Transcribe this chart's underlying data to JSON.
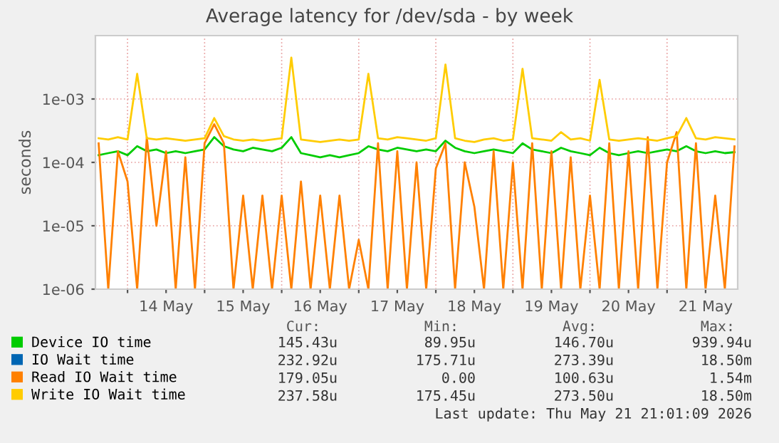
{
  "chart_data": {
    "type": "line",
    "title": "Average latency for /dev/sda - by week",
    "ylabel": "seconds",
    "log": "y",
    "grid": true,
    "legend": "bottom",
    "marker": "none",
    "line_style": "solid",
    "xlim": [
      "2026-05-13T14:00",
      "2026-05-21T22:00"
    ],
    "xticks": [
      {
        "value": "2026-05-14T00:00",
        "label": null
      },
      {
        "value": "2026-05-14T12:00",
        "label": "14 May"
      },
      {
        "value": "2026-05-15T00:00",
        "label": null
      },
      {
        "value": "2026-05-15T12:00",
        "label": "15 May"
      },
      {
        "value": "2026-05-16T00:00",
        "label": null
      },
      {
        "value": "2026-05-16T12:00",
        "label": "16 May"
      },
      {
        "value": "2026-05-17T00:00",
        "label": null
      },
      {
        "value": "2026-05-17T12:00",
        "label": "17 May"
      },
      {
        "value": "2026-05-18T00:00",
        "label": null
      },
      {
        "value": "2026-05-18T12:00",
        "label": "18 May"
      },
      {
        "value": "2026-05-19T00:00",
        "label": null
      },
      {
        "value": "2026-05-19T12:00",
        "label": "19 May"
      },
      {
        "value": "2026-05-20T00:00",
        "label": null
      },
      {
        "value": "2026-05-20T12:00",
        "label": "20 May"
      },
      {
        "value": "2026-05-21T00:00",
        "label": null
      },
      {
        "value": "2026-05-21T12:00",
        "label": "21 May"
      }
    ],
    "ylim": [
      1e-06,
      0.01
    ],
    "yticks": [
      {
        "value": 1e-06,
        "label": "1e-06"
      },
      {
        "value": 1e-05,
        "label": "1e-05"
      },
      {
        "value": 0.0001,
        "label": "1e-04"
      },
      {
        "value": 0.001,
        "label": "1e-03"
      }
    ],
    "x": [
      "2026-05-13T15:00",
      "2026-05-13T18:00",
      "2026-05-13T21:00",
      "2026-05-14T00:00",
      "2026-05-14T03:00",
      "2026-05-14T06:00",
      "2026-05-14T09:00",
      "2026-05-14T12:00",
      "2026-05-14T15:00",
      "2026-05-14T18:00",
      "2026-05-14T21:00",
      "2026-05-15T00:00",
      "2026-05-15T03:00",
      "2026-05-15T06:00",
      "2026-05-15T09:00",
      "2026-05-15T12:00",
      "2026-05-15T15:00",
      "2026-05-15T18:00",
      "2026-05-15T21:00",
      "2026-05-16T00:00",
      "2026-05-16T03:00",
      "2026-05-16T06:00",
      "2026-05-16T09:00",
      "2026-05-16T12:00",
      "2026-05-16T15:00",
      "2026-05-16T18:00",
      "2026-05-16T21:00",
      "2026-05-17T00:00",
      "2026-05-17T03:00",
      "2026-05-17T06:00",
      "2026-05-17T09:00",
      "2026-05-17T12:00",
      "2026-05-17T15:00",
      "2026-05-17T18:00",
      "2026-05-17T21:00",
      "2026-05-18T00:00",
      "2026-05-18T03:00",
      "2026-05-18T06:00",
      "2026-05-18T09:00",
      "2026-05-18T12:00",
      "2026-05-18T15:00",
      "2026-05-18T18:00",
      "2026-05-18T21:00",
      "2026-05-19T00:00",
      "2026-05-19T03:00",
      "2026-05-19T06:00",
      "2026-05-19T09:00",
      "2026-05-19T12:00",
      "2026-05-19T15:00",
      "2026-05-19T18:00",
      "2026-05-19T21:00",
      "2026-05-20T00:00",
      "2026-05-20T03:00",
      "2026-05-20T06:00",
      "2026-05-20T09:00",
      "2026-05-20T12:00",
      "2026-05-20T15:00",
      "2026-05-20T18:00",
      "2026-05-20T21:00",
      "2026-05-21T00:00",
      "2026-05-21T03:00",
      "2026-05-21T06:00",
      "2026-05-21T09:00",
      "2026-05-21T12:00",
      "2026-05-21T15:00",
      "2026-05-21T18:00",
      "2026-05-21T21:00"
    ],
    "series": [
      {
        "name": "Device IO time",
        "color": "#00cc00",
        "values": [
          0.00013,
          0.00014,
          0.00015,
          0.00013,
          0.00018,
          0.00015,
          0.00016,
          0.00014,
          0.00015,
          0.00014,
          0.00015,
          0.00016,
          0.00025,
          0.00018,
          0.00016,
          0.00015,
          0.00017,
          0.00016,
          0.00015,
          0.00017,
          0.00025,
          0.00014,
          0.00013,
          0.00012,
          0.00013,
          0.00012,
          0.00013,
          0.00014,
          0.00018,
          0.00016,
          0.00015,
          0.00017,
          0.00016,
          0.00015,
          0.00016,
          0.00015,
          0.00022,
          0.00017,
          0.00015,
          0.00014,
          0.00015,
          0.00016,
          0.00015,
          0.00014,
          0.0002,
          0.00016,
          0.00015,
          0.00014,
          0.00017,
          0.00015,
          0.00014,
          0.00013,
          0.00017,
          0.00014,
          0.00013,
          0.00014,
          0.00015,
          0.00014,
          0.00015,
          0.00016,
          0.00015,
          0.00018,
          0.00015,
          0.00014,
          0.00015,
          0.00014,
          0.000145
        ]
      },
      {
        "name": "IO Wait time",
        "color": "#0066b3",
        "values": [
          null,
          null,
          null,
          null,
          null,
          null,
          null,
          null,
          null,
          null,
          null,
          null,
          null,
          null,
          null,
          null,
          null,
          null,
          null,
          null,
          null,
          null,
          null,
          null,
          null,
          null,
          null,
          null,
          null,
          null,
          null,
          null,
          null,
          null,
          null,
          null,
          null,
          null,
          null,
          null,
          null,
          null,
          null,
          null,
          null,
          null,
          null,
          null,
          null,
          null,
          null,
          null,
          null,
          null,
          null,
          null,
          null,
          null,
          null,
          null,
          null,
          null,
          null,
          null,
          null,
          null,
          null
        ]
      },
      {
        "name": "Read IO Wait time",
        "color": "#ff8000",
        "values": [
          0.0002,
          1e-06,
          0.00015,
          5e-05,
          1e-06,
          0.00025,
          1e-05,
          0.00015,
          1e-06,
          0.00012,
          1e-06,
          0.0002,
          0.0004,
          0.0002,
          1e-06,
          3e-05,
          1e-06,
          3e-05,
          1e-06,
          3e-05,
          1e-06,
          5e-05,
          1e-06,
          3e-05,
          1e-06,
          3e-05,
          1e-06,
          6e-06,
          1e-06,
          0.0002,
          1e-06,
          0.00015,
          1e-06,
          0.0001,
          1e-06,
          8e-05,
          0.0002,
          1e-06,
          0.0001,
          2e-05,
          1e-06,
          0.00015,
          1e-06,
          0.0001,
          1e-06,
          0.0002,
          1e-06,
          0.00015,
          1e-06,
          0.00012,
          1e-06,
          3e-05,
          1e-06,
          0.0002,
          1e-06,
          0.00015,
          1e-06,
          0.00025,
          1e-06,
          0.0001,
          0.0003,
          1e-06,
          0.0002,
          1e-06,
          3e-05,
          1e-06,
          0.000179
        ]
      },
      {
        "name": "Write IO Wait time",
        "color": "#ffcc00",
        "values": [
          0.00024,
          0.00023,
          0.00025,
          0.00023,
          0.0025,
          0.00024,
          0.00023,
          0.00024,
          0.00023,
          0.00022,
          0.00023,
          0.00024,
          0.0005,
          0.00026,
          0.00023,
          0.00022,
          0.00023,
          0.00022,
          0.00023,
          0.00024,
          0.0045,
          0.00023,
          0.00022,
          0.00021,
          0.00022,
          0.00023,
          0.00022,
          0.00023,
          0.0025,
          0.00024,
          0.00023,
          0.00025,
          0.00024,
          0.00023,
          0.00022,
          0.00024,
          0.0035,
          0.00024,
          0.00022,
          0.00021,
          0.00023,
          0.00024,
          0.00022,
          0.00023,
          0.003,
          0.00024,
          0.00023,
          0.00022,
          0.0003,
          0.00023,
          0.00024,
          0.00022,
          0.002,
          0.00023,
          0.00022,
          0.00023,
          0.00024,
          0.00023,
          0.00022,
          0.00024,
          0.00026,
          0.0005,
          0.00024,
          0.00023,
          0.00025,
          0.00024,
          0.00023
        ]
      }
    ],
    "annotations": [
      "Cur:",
      "Min:",
      "Avg:",
      "Max:",
      "145.43u",
      "89.95u",
      "146.70u",
      "939.94u",
      "232.92u",
      "175.71u",
      "273.39u",
      "18.50m",
      "179.05u",
      "0.00",
      "100.63u",
      "1.54m",
      "237.58u",
      "175.45u",
      "273.50u",
      "18.50m",
      "Last update: Thu May 21 21:01:09 2026"
    ]
  }
}
